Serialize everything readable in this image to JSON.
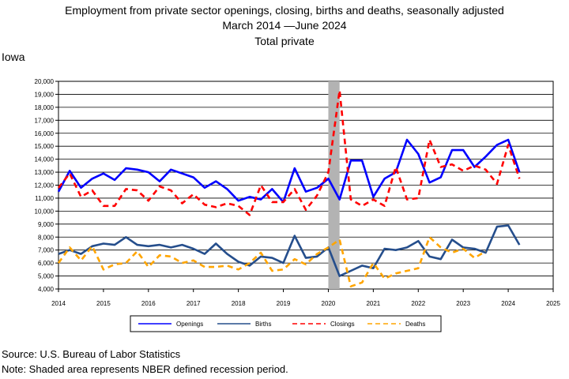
{
  "title_line1": "Employment from private sector openings, closing, births and deaths, seasonally adjusted",
  "title_line2_pre": "March 2014",
  "title_line2_post": "June 2024",
  "title_line3": "Total private",
  "state": "Iowa",
  "source": "Source: U.S. Bureau of Labor Statistics",
  "note": "Note: Shaded area represents NBER defined recession period.",
  "colors": {
    "openings": "#0000ff",
    "births": "#254e8c",
    "closings": "#ff0000",
    "deaths": "#ffa500",
    "recession": "#b3b3b3"
  },
  "chart_data": {
    "type": "line",
    "xlim": [
      2014,
      2025
    ],
    "ylim": [
      4000,
      20000
    ],
    "x_ticks": [
      "2014",
      "2015",
      "2016",
      "2017",
      "2018",
      "2019",
      "2020",
      "2021",
      "2022",
      "2023",
      "2024",
      "2025"
    ],
    "y_ticks": [
      "4,000",
      "5,000",
      "6,000",
      "7,000",
      "8,000",
      "9,000",
      "10,000",
      "11,000",
      "12,000",
      "13,000",
      "14,000",
      "15,000",
      "16,000",
      "17,000",
      "18,000",
      "19,000",
      "20,000"
    ],
    "recession": [
      2020.0,
      2020.25
    ],
    "x": [
      2014.0,
      2014.25,
      2014.5,
      2014.75,
      2015.0,
      2015.25,
      2015.5,
      2015.75,
      2016.0,
      2016.25,
      2016.5,
      2016.75,
      2017.0,
      2017.25,
      2017.5,
      2017.75,
      2018.0,
      2018.25,
      2018.5,
      2018.75,
      2019.0,
      2019.25,
      2019.5,
      2019.75,
      2020.0,
      2020.25,
      2020.5,
      2020.75,
      2021.0,
      2021.25,
      2021.5,
      2021.75,
      2022.0,
      2022.25,
      2022.5,
      2022.75,
      2023.0,
      2023.25,
      2023.5,
      2023.75,
      2024.0,
      2024.25
    ],
    "series": [
      {
        "name": "Openings",
        "key": "openings",
        "dashed": false,
        "values": [
          11500,
          13100,
          11800,
          12500,
          12900,
          12400,
          13300,
          13200,
          13000,
          12300,
          13200,
          12900,
          12600,
          11800,
          12300,
          11700,
          10800,
          11100,
          10900,
          11700,
          10700,
          13300,
          11500,
          11800,
          12500,
          10900,
          13900,
          13900,
          11100,
          12500,
          13000,
          15500,
          14400,
          12200,
          12600,
          14700,
          14700,
          13400,
          14200,
          15100,
          15500,
          13000
        ]
      },
      {
        "name": "Births",
        "key": "births",
        "dashed": false,
        "values": [
          6700,
          7000,
          6700,
          7300,
          7500,
          7400,
          8000,
          7400,
          7300,
          7400,
          7200,
          7400,
          7100,
          6700,
          7500,
          6700,
          6100,
          5800,
          6500,
          6400,
          6000,
          8100,
          6400,
          6500,
          7200,
          5000,
          5400,
          5800,
          5600,
          7100,
          7000,
          7200,
          7700,
          6500,
          6300,
          7800,
          7200,
          7100,
          6800,
          8800,
          8900,
          7400
        ]
      },
      {
        "name": "Closings",
        "key": "closings",
        "dashed": true,
        "values": [
          11800,
          12900,
          11100,
          11600,
          10400,
          10400,
          11700,
          11600,
          10800,
          11900,
          11600,
          10600,
          11300,
          10500,
          10300,
          10600,
          10400,
          9700,
          12000,
          10700,
          10700,
          11700,
          10100,
          11200,
          13000,
          19300,
          10900,
          10400,
          10900,
          10400,
          13400,
          10900,
          11000,
          15500,
          13400,
          13600,
          13100,
          13500,
          13200,
          12100,
          15100,
          12500
        ]
      },
      {
        "name": "Deaths",
        "key": "deaths",
        "dashed": true,
        "values": [
          6000,
          7200,
          6200,
          7300,
          5500,
          5900,
          6000,
          6900,
          5700,
          6600,
          6500,
          6000,
          6200,
          5700,
          5700,
          5800,
          5500,
          6000,
          6800,
          5400,
          5500,
          6300,
          5900,
          6700,
          7200,
          7800,
          4200,
          4500,
          6000,
          4800,
          5200,
          5400,
          5600,
          8000,
          7200,
          6800,
          7100,
          6400,
          6900,
          null,
          null,
          null
        ]
      }
    ]
  }
}
